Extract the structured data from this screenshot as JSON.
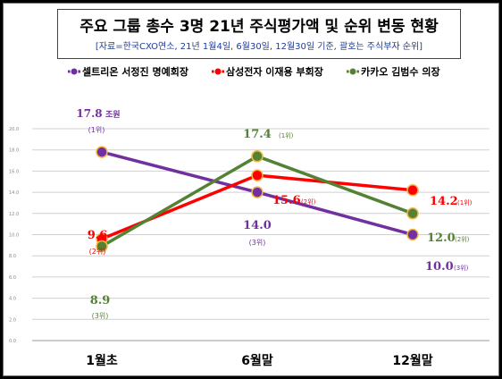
{
  "chart_data": {
    "type": "line",
    "title": "주요 그룹 총수 3명 21년 주식평가액 및 순위 변동 현황",
    "subtitle": "[자료=한국CXO연소, 21년 1월4일, 6월30일, 12월30일 기준, 괄호는 주식부자 순위]",
    "categories": [
      "1월초",
      "6월말",
      "12월말"
    ],
    "ylim": [
      0,
      20
    ],
    "yticks": [
      "0.0",
      "2.0",
      "4.0",
      "6.0",
      "8.0",
      "10.0",
      "12.0",
      "14.0",
      "16.0",
      "18.0",
      "20.0"
    ],
    "grid": true,
    "legend_position": "top",
    "series": [
      {
        "name": "셀트리온 서정진 명예회장",
        "color": "#7030a0",
        "values": [
          17.8,
          14.0,
          10.0
        ],
        "value_labels": [
          "17.8",
          "14.0",
          "10.0"
        ],
        "value_suffixes": [
          "조원",
          "",
          ""
        ],
        "ranks": [
          "(1위)",
          "(3위)",
          "(3위)"
        ]
      },
      {
        "name": "삼성전자 이재용 부회장",
        "color": "#ff0000",
        "values": [
          9.6,
          15.6,
          14.2
        ],
        "value_labels": [
          "9.6",
          "15.6",
          "14.2"
        ],
        "value_suffixes": [
          "",
          "",
          ""
        ],
        "ranks": [
          "(2위)",
          "(2위)",
          "(1위)"
        ]
      },
      {
        "name": "카카오 김범수 의장",
        "color": "#548235",
        "values": [
          8.9,
          17.4,
          12.0
        ],
        "value_labels": [
          "8.9",
          "17.4",
          "12.0"
        ],
        "value_suffixes": [
          "",
          "",
          ""
        ],
        "ranks": [
          "(3위)",
          "(1위)",
          "(2위)"
        ]
      }
    ]
  }
}
